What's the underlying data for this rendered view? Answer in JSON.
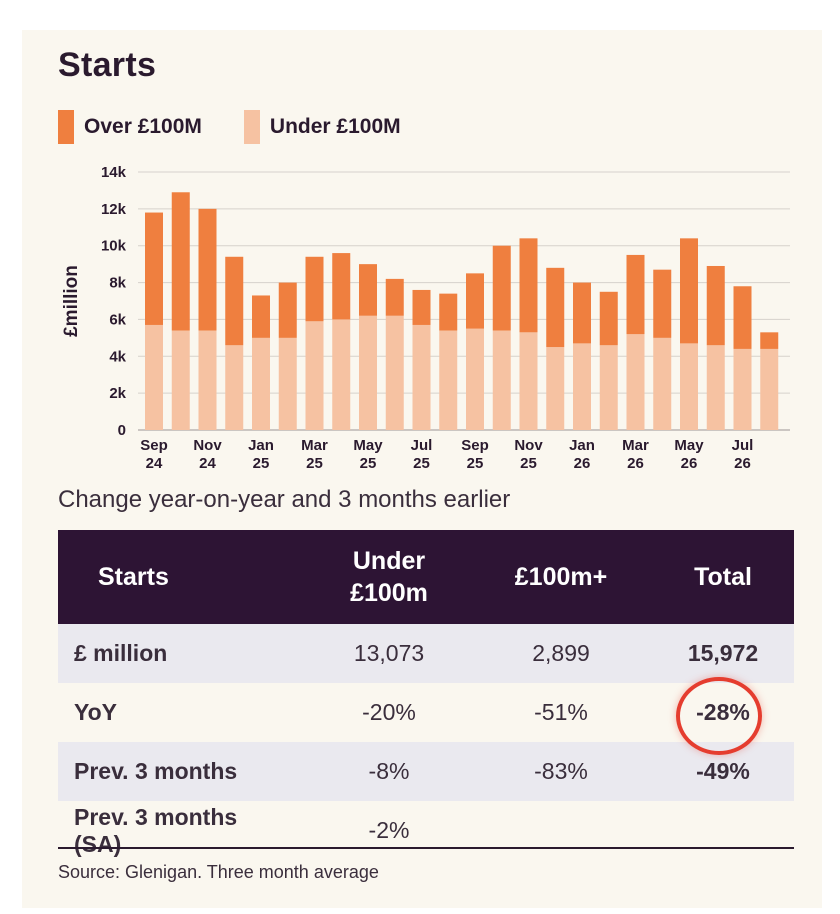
{
  "title": "Starts",
  "legend": [
    {
      "label": "Over £100M",
      "color": "#ef7f3f"
    },
    {
      "label": "Under £100M",
      "color": "#f6c2a2"
    }
  ],
  "chart_data": {
    "type": "bar",
    "stacked": true,
    "title": "Starts",
    "ylabel": "£million",
    "xlabel": "",
    "ylim": [
      0,
      14000
    ],
    "yticks": [
      0,
      2000,
      4000,
      6000,
      8000,
      10000,
      12000,
      14000
    ],
    "ytick_labels": [
      "0",
      "2k",
      "4k",
      "6k",
      "8k",
      "10k",
      "12k",
      "14k"
    ],
    "grid": true,
    "categories": [
      "Sep 24",
      "Oct 24",
      "Nov 24",
      "Dec 24",
      "Jan 25",
      "Feb 25",
      "Mar 25",
      "Apr 25",
      "May 25",
      "Jun 25",
      "Jul 25",
      "Aug 25",
      "Sep 25",
      "Oct 25",
      "Nov 25",
      "Dec 25",
      "Jan 26",
      "Feb 26",
      "Mar 26",
      "Apr 26",
      "May 26",
      "Jun 26",
      "Jul 26",
      "Aug 26"
    ],
    "xtick_labels": [
      {
        "index": 0,
        "line1": "Sep",
        "line2": "24"
      },
      {
        "index": 2,
        "line1": "Nov",
        "line2": "24"
      },
      {
        "index": 4,
        "line1": "Jan",
        "line2": "25"
      },
      {
        "index": 6,
        "line1": "Mar",
        "line2": "25"
      },
      {
        "index": 8,
        "line1": "May",
        "line2": "25"
      },
      {
        "index": 10,
        "line1": "Jul",
        "line2": "25"
      },
      {
        "index": 12,
        "line1": "Sep",
        "line2": "25"
      },
      {
        "index": 14,
        "line1": "Nov",
        "line2": "25"
      },
      {
        "index": 16,
        "line1": "Jan",
        "line2": "26"
      },
      {
        "index": 18,
        "line1": "Mar",
        "line2": "26"
      },
      {
        "index": 20,
        "line1": "May",
        "line2": "26"
      },
      {
        "index": 22,
        "line1": "Jul",
        "line2": "26"
      }
    ],
    "series": [
      {
        "name": "Under £100M",
        "color": "#f6c2a2",
        "values": [
          5700,
          5400,
          5400,
          4600,
          5000,
          5000,
          5900,
          6000,
          6200,
          6200,
          5700,
          5400,
          5500,
          5400,
          5300,
          4500,
          4700,
          4600,
          5200,
          5000,
          4700,
          4600,
          4400,
          4400
        ]
      },
      {
        "name": "Over £100M",
        "color": "#ef7f3f",
        "values": [
          6100,
          7500,
          6600,
          4800,
          2300,
          3000,
          3500,
          3600,
          2800,
          2000,
          1900,
          2000,
          3000,
          4600,
          5100,
          4300,
          3300,
          2900,
          4300,
          3700,
          5700,
          4300,
          3400,
          900
        ]
      }
    ]
  },
  "subtitle": "Change year-on-year and 3 months earlier",
  "table": {
    "headers": [
      "Starts",
      "Under £100m",
      "£100m+",
      "Total"
    ],
    "rows": [
      [
        "£ million",
        "13,073",
        "2,899",
        "15,972"
      ],
      [
        "YoY",
        "-20%",
        "-51%",
        "-28%"
      ],
      [
        "Prev. 3 months",
        "-8%",
        "-83%",
        "-49%"
      ],
      [
        "Prev. 3 months (SA)",
        "-2%",
        "",
        ""
      ]
    ],
    "highlight_color": "#e53d2f"
  },
  "source": "Source: Glenigan. Three month average"
}
